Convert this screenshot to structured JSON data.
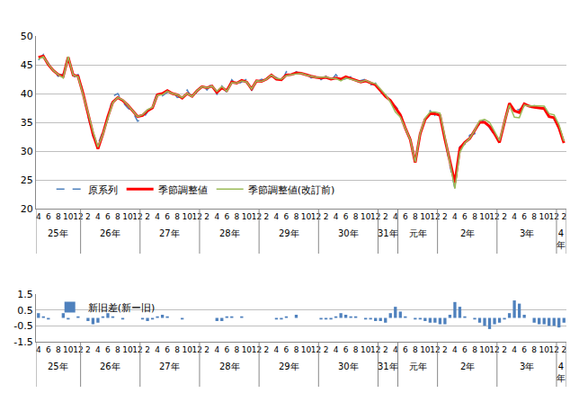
{
  "chart_data": [
    {
      "type": "line",
      "categories": [
        "4",
        null,
        "6",
        null,
        "8",
        null,
        "10",
        null,
        "12",
        null,
        "2",
        null,
        "4",
        null,
        "6",
        null,
        "8",
        null,
        "10",
        null,
        "12",
        null,
        "2",
        null,
        "4",
        null,
        "6",
        null,
        "8",
        null,
        "10",
        null,
        "12",
        null,
        "2",
        null,
        "4",
        null,
        "6",
        null,
        "8",
        null,
        "10",
        null,
        "12",
        null,
        "2",
        null,
        "4",
        null,
        "6",
        null,
        "8",
        null,
        "10",
        null,
        "12",
        null,
        "2",
        null,
        "4",
        null,
        "6",
        null,
        "8",
        null,
        "10",
        null,
        "12",
        null,
        "2",
        null,
        "4",
        null,
        "6",
        null,
        "8",
        null,
        "10",
        null,
        "12",
        null,
        "2",
        null,
        "4",
        null,
        "6",
        null,
        "8",
        null,
        "10",
        null,
        "12",
        null,
        "2",
        null,
        "4",
        null,
        "6",
        null,
        "8",
        null,
        "10",
        null,
        "12",
        null,
        "2"
      ],
      "x_groups": [
        {
          "label": "25年",
          "first": 0,
          "last": 8
        },
        {
          "label": "26年",
          "first": 9,
          "last": 20
        },
        {
          "label": "27年",
          "first": 21,
          "last": 32
        },
        {
          "label": "28年",
          "first": 33,
          "last": 44
        },
        {
          "label": "29年",
          "first": 45,
          "last": 56
        },
        {
          "label": "30年",
          "first": 57,
          "last": 68
        },
        {
          "label": "31年",
          "first": 69,
          "last": 72
        },
        {
          "label": "元年",
          "first": 73,
          "last": 80
        },
        {
          "label": "2年",
          "first": 81,
          "last": 92
        },
        {
          "label": "3年",
          "first": 93,
          "last": 104
        },
        {
          "label": "4年",
          "first": 105,
          "last": 106
        }
      ],
      "series": [
        {
          "name": "原系列",
          "color": "#4f81bd",
          "line_style": "dashed",
          "values": [
            45.8,
            46.8,
            45.3,
            43.7,
            43.0,
            43.4,
            46.5,
            42.8,
            43.3,
            40.3,
            36.0,
            32.5,
            31.2,
            33.5,
            35.6,
            39.5,
            40.0,
            38.5,
            37.5,
            36.8,
            35.2,
            35.5,
            36.8,
            37.8,
            40.2,
            39.6,
            40.2,
            40.5,
            39.3,
            39.5,
            40.6,
            39.2,
            40.3,
            41.5,
            40.6,
            41.8,
            39.8,
            41.3,
            40.2,
            42.4,
            41.5,
            42.0,
            42.5,
            40.5,
            42.0,
            42.5,
            42.2,
            43.0,
            42.8,
            42.0,
            43.8,
            43.0,
            43.8,
            43.3,
            43.5,
            42.7,
            43.0,
            42.4,
            43.0,
            42.2,
            43.3,
            42.3,
            42.6,
            42.9,
            42.0,
            42.3,
            42.5,
            41.5,
            41.8,
            40.2,
            39.8,
            38.5,
            37.8,
            36.8,
            33.6,
            32.3,
            28.5,
            32.8,
            35.8,
            37.0,
            36.2,
            36.5,
            31.8,
            27.5,
            23.5,
            30.8,
            31.2,
            32.8,
            33.0,
            34.8,
            35.5,
            34.0,
            32.8,
            31.8,
            34.7,
            38.0,
            37.3,
            37.2,
            37.8,
            37.3,
            37.9,
            37.2,
            37.8,
            36.3,
            35.5,
            34.2,
            31.2
          ]
        },
        {
          "name": "季節調整値",
          "color": "#ff0000",
          "line_style": "solid",
          "values": [
            46.3,
            46.5,
            45.0,
            44.0,
            43.3,
            43.0,
            46.3,
            43.2,
            43.0,
            40.0,
            36.5,
            33.0,
            30.4,
            33.0,
            36.0,
            38.5,
            39.3,
            38.8,
            38.0,
            37.0,
            36.0,
            36.2,
            37.0,
            37.5,
            39.8,
            40.0,
            40.5,
            40.0,
            39.8,
            39.2,
            40.0,
            39.5,
            40.5,
            41.2,
            41.0,
            41.3,
            40.2,
            41.0,
            40.5,
            42.0,
            41.8,
            42.3,
            42.0,
            40.8,
            42.2,
            42.1,
            42.5,
            43.2,
            42.5,
            42.4,
            43.2,
            43.3,
            43.6,
            43.5,
            43.2,
            43.0,
            42.8,
            42.7,
            42.8,
            42.5,
            42.7,
            42.5,
            42.9,
            42.6,
            42.3,
            42.0,
            42.2,
            41.8,
            41.5,
            40.5,
            39.5,
            38.8,
            37.5,
            36.3,
            34.0,
            32.0,
            28.0,
            33.0,
            35.5,
            36.5,
            36.5,
            36.2,
            32.0,
            28.0,
            24.5,
            30.5,
            31.5,
            32.2,
            33.5,
            35.0,
            35.0,
            34.3,
            33.0,
            31.5,
            35.0,
            38.3,
            37.0,
            36.7,
            38.2,
            37.8,
            37.6,
            37.5,
            37.4,
            36.0,
            35.8,
            34.0,
            31.4
          ]
        },
        {
          "name": "季節調整値(改訂前)",
          "color": "#9bbb59",
          "line_style": "solid",
          "values": [
            46.0,
            46.4,
            45.1,
            44.0,
            43.3,
            42.7,
            46.4,
            43.2,
            42.9,
            40.0,
            36.7,
            33.4,
            30.7,
            32.9,
            35.7,
            38.4,
            39.3,
            38.9,
            38.0,
            37.0,
            36.0,
            36.3,
            37.2,
            37.6,
            39.7,
            39.8,
            40.4,
            40.0,
            39.8,
            39.3,
            40.0,
            39.5,
            40.5,
            41.2,
            41.0,
            41.3,
            40.4,
            41.2,
            40.4,
            41.9,
            41.8,
            42.2,
            42.0,
            40.8,
            42.2,
            42.1,
            42.5,
            43.2,
            42.6,
            42.5,
            43.1,
            43.3,
            43.4,
            43.5,
            43.2,
            43.0,
            42.8,
            42.8,
            42.9,
            42.6,
            42.6,
            42.2,
            42.7,
            42.5,
            42.2,
            42.0,
            42.3,
            41.9,
            41.7,
            40.7,
            39.8,
            38.5,
            36.8,
            35.9,
            33.9,
            32.0,
            28.1,
            33.1,
            35.7,
            36.8,
            36.8,
            36.6,
            32.4,
            27.8,
            23.5,
            29.8,
            31.4,
            32.2,
            33.6,
            35.3,
            35.5,
            35.0,
            33.4,
            31.8,
            35.1,
            38.0,
            35.9,
            35.8,
            38.0,
            37.8,
            37.9,
            37.9,
            37.8,
            36.5,
            36.3,
            34.6,
            31.7
          ]
        }
      ],
      "ylim": [
        20,
        50
      ],
      "yticks": [
        20,
        25,
        30,
        35,
        40,
        45,
        50
      ],
      "grid": true,
      "legend": "bottom left"
    },
    {
      "type": "bar",
      "categories": [
        "4",
        null,
        "6",
        null,
        "8",
        null,
        "10",
        null,
        "12",
        null,
        "2",
        null,
        "4",
        null,
        "6",
        null,
        "8",
        null,
        "10",
        null,
        "12",
        null,
        "2",
        null,
        "4",
        null,
        "6",
        null,
        "8",
        null,
        "10",
        null,
        "12",
        null,
        "2",
        null,
        "4",
        null,
        "6",
        null,
        "8",
        null,
        "10",
        null,
        "12",
        null,
        "2",
        null,
        "4",
        null,
        "6",
        null,
        "8",
        null,
        "10",
        null,
        "12",
        null,
        "2",
        null,
        "4",
        null,
        "6",
        null,
        "8",
        null,
        "10",
        null,
        "12",
        null,
        "2",
        null,
        "4",
        null,
        "6",
        null,
        "8",
        null,
        "10",
        null,
        "12",
        null,
        "2",
        null,
        "4",
        null,
        "6",
        null,
        "8",
        null,
        "10",
        null,
        "12",
        null,
        "2",
        null,
        "4",
        null,
        "6",
        null,
        "8",
        null,
        "10",
        null,
        "12",
        null,
        "2"
      ],
      "x_groups": [
        {
          "label": "25年",
          "first": 0,
          "last": 8
        },
        {
          "label": "26年",
          "first": 9,
          "last": 20
        },
        {
          "label": "27年",
          "first": 21,
          "last": 32
        },
        {
          "label": "28年",
          "first": 33,
          "last": 44
        },
        {
          "label": "29年",
          "first": 45,
          "last": 56
        },
        {
          "label": "30年",
          "first": 57,
          "last": 68
        },
        {
          "label": "31年",
          "first": 69,
          "last": 72
        },
        {
          "label": "元年",
          "first": 73,
          "last": 80
        },
        {
          "label": "2年",
          "first": 81,
          "last": 92
        },
        {
          "label": "3年",
          "first": 93,
          "last": 104
        },
        {
          "label": "4年",
          "first": 105,
          "last": 106
        }
      ],
      "series": [
        {
          "name": "新旧差(新ー旧)",
          "color": "#4f81bd",
          "values": [
            0.3,
            0.1,
            -0.1,
            0,
            0,
            0.3,
            -0.1,
            0,
            0.1,
            0,
            -0.2,
            -0.4,
            -0.3,
            0.1,
            0.3,
            0.1,
            0,
            -0.1,
            0,
            0,
            0,
            -0.1,
            -0.2,
            -0.1,
            0.1,
            0.2,
            0.1,
            0,
            0,
            -0.1,
            0,
            0,
            0,
            0,
            0,
            0,
            -0.2,
            -0.2,
            0.1,
            0.1,
            0,
            0.1,
            0,
            0,
            0,
            0,
            0,
            0,
            -0.1,
            -0.1,
            0.1,
            0,
            0.2,
            0,
            0,
            0,
            0,
            -0.1,
            -0.1,
            -0.1,
            0.1,
            0.3,
            0.2,
            0.1,
            0.1,
            0,
            -0.1,
            -0.1,
            -0.2,
            -0.2,
            -0.3,
            0.3,
            0.7,
            0.4,
            0.1,
            0,
            -0.1,
            -0.1,
            -0.2,
            -0.3,
            -0.3,
            -0.4,
            -0.4,
            0.2,
            1.0,
            0.7,
            0.1,
            0,
            -0.1,
            -0.3,
            -0.5,
            -0.7,
            -0.4,
            -0.3,
            -0.1,
            0.3,
            1.1,
            0.9,
            0.2,
            0,
            -0.3,
            -0.4,
            -0.4,
            -0.5,
            -0.5,
            -0.6,
            -0.3
          ]
        }
      ],
      "ylim": [
        -1.5,
        1.5
      ],
      "yticks": [
        -1.5,
        -0.5,
        0.5,
        1.5
      ],
      "grid": true,
      "legend": "top left"
    }
  ]
}
